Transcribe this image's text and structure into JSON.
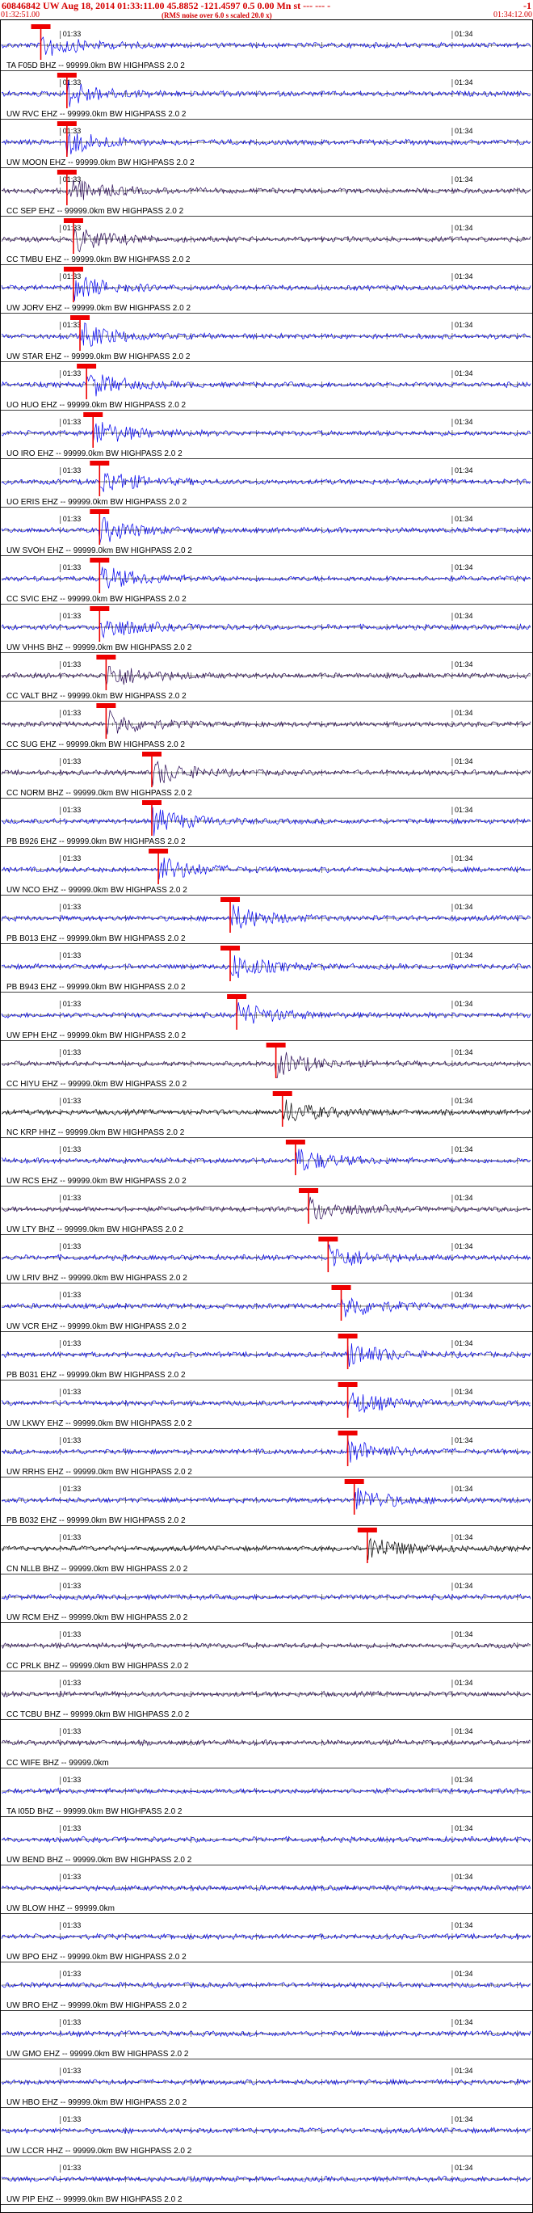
{
  "header": {
    "title": "60846842 UW Aug 18, 2014 01:33:11.00   45.8852 -121.4597  0.5 0.00 Mn st --- --- -",
    "title_right": "-1",
    "start_time": "01:32:51.00",
    "note": "(RMS noise over 6.0 s scaled 20.0 x)",
    "end_time": "01:34:12.00"
  },
  "chart_data": {
    "type": "line",
    "title": "60846842 UW Aug 18, 2014 01:33:11.00   45.8852 -121.4597  0.5 0.00 Mn st --- --- -",
    "xlim_seconds": [
      0,
      81
    ],
    "minute_tick_labels": [
      "01:33",
      "01:34"
    ],
    "minute_tick_seconds": [
      9,
      69
    ],
    "colors": {
      "blue": "#0000ee",
      "dark": "#2a0a55",
      "black": "#000000",
      "pick": "#ee0000"
    },
    "stations": [
      {
        "label": "TA F05D BHZ -- 99999.0km BW  HIGHPASS  2.0  2",
        "color": "blue",
        "pick": 6
      },
      {
        "label": "UW RVC EHZ -- 99999.0km BW  HIGHPASS  2.0  2",
        "color": "blue",
        "pick": 10
      },
      {
        "label": "UW MOON EHZ -- 99999.0km BW  HIGHPASS  2.0  2",
        "color": "blue",
        "pick": 10
      },
      {
        "label": "CC SEP EHZ -- 99999.0km BW  HIGHPASS  2.0  2",
        "color": "dark",
        "pick": 10
      },
      {
        "label": "CC TMBU EHZ -- 99999.0km BW  HIGHPASS  2.0  2",
        "color": "dark",
        "pick": 11
      },
      {
        "label": "UW JORV EHZ -- 99999.0km BW  HIGHPASS  2.0  2",
        "color": "blue",
        "pick": 11
      },
      {
        "label": "UW STAR EHZ -- 99999.0km BW  HIGHPASS  2.0  2",
        "color": "blue",
        "pick": 12
      },
      {
        "label": "UO HUO EHZ -- 99999.0km BW  HIGHPASS  2.0  2",
        "color": "blue",
        "pick": 13
      },
      {
        "label": "UO IRO EHZ -- 99999.0km BW  HIGHPASS  2.0  2",
        "color": "blue",
        "pick": 14
      },
      {
        "label": "UO ERIS EHZ -- 99999.0km BW  HIGHPASS  2.0  2",
        "color": "blue",
        "pick": 15
      },
      {
        "label": "UW SVOH EHZ -- 99999.0km BW  HIGHPASS  2.0  2",
        "color": "blue",
        "pick": 15
      },
      {
        "label": "CC SVIC EHZ -- 99999.0km BW  HIGHPASS  2.0  2",
        "color": "blue",
        "pick": 15
      },
      {
        "label": "UW VHHS BHZ -- 99999.0km BW  HIGHPASS  2.0  2",
        "color": "blue",
        "pick": 15
      },
      {
        "label": "CC VALT BHZ -- 99999.0km BW  HIGHPASS  2.0  2",
        "color": "dark",
        "pick": 16
      },
      {
        "label": "CC SUG EHZ -- 99999.0km BW  HIGHPASS  2.0  2",
        "color": "dark",
        "pick": 16
      },
      {
        "label": "CC NORM BHZ -- 99999.0km BW  HIGHPASS  2.0  2",
        "color": "dark",
        "pick": 23
      },
      {
        "label": "PB B926 EHZ -- 99999.0km BW  HIGHPASS  2.0  2",
        "color": "blue",
        "pick": 23
      },
      {
        "label": "UW NCO EHZ -- 99999.0km BW  HIGHPASS  2.0  2",
        "color": "blue",
        "pick": 24
      },
      {
        "label": "PB B013 EHZ -- 99999.0km BW  HIGHPASS  2.0  2",
        "color": "blue",
        "pick": 35
      },
      {
        "label": "PB B943 EHZ -- 99999.0km BW  HIGHPASS  2.0  2",
        "color": "blue",
        "pick": 35
      },
      {
        "label": "UW EPH EHZ -- 99999.0km BW  HIGHPASS  2.0  2",
        "color": "blue",
        "pick": 36
      },
      {
        "label": "CC HIYU EHZ -- 99999.0km BW  HIGHPASS  2.0  2",
        "color": "dark",
        "pick": 42
      },
      {
        "label": "NC KRP HHZ -- 99999.0km BW  HIGHPASS  2.0  2",
        "color": "black",
        "pick": 43
      },
      {
        "label": "UW RCS EHZ -- 99999.0km BW  HIGHPASS  2.0  2",
        "color": "blue",
        "pick": 45
      },
      {
        "label": "UW LTY BHZ -- 99999.0km BW  HIGHPASS  2.0  2",
        "color": "dark",
        "pick": 47
      },
      {
        "label": "UW LRIV BHZ -- 99999.0km BW  HIGHPASS  2.0  2",
        "color": "blue",
        "pick": 50
      },
      {
        "label": "UW VCR EHZ -- 99999.0km BW  HIGHPASS  2.0  2",
        "color": "blue",
        "pick": 52
      },
      {
        "label": "PB B031 EHZ -- 99999.0km BW  HIGHPASS  2.0  2",
        "color": "blue",
        "pick": 53
      },
      {
        "label": "UW LKWY EHZ -- 99999.0km BW  HIGHPASS  2.0  2",
        "color": "blue",
        "pick": 53
      },
      {
        "label": "UW RRHS EHZ -- 99999.0km BW  HIGHPASS  2.0  2",
        "color": "blue",
        "pick": 53
      },
      {
        "label": "PB B032 EHZ -- 99999.0km BW  HIGHPASS  2.0  2",
        "color": "blue",
        "pick": 54
      },
      {
        "label": "CN NLLB BHZ -- 99999.0km BW  HIGHPASS  2.0  2",
        "color": "black",
        "pick": 56
      },
      {
        "label": "UW RCM EHZ -- 99999.0km BW  HIGHPASS  2.0  2",
        "color": "blue",
        "pick": null
      },
      {
        "label": "CC PRLK BHZ -- 99999.0km BW  HIGHPASS  2.0  2",
        "color": "dark",
        "pick": null
      },
      {
        "label": "CC TCBU BHZ -- 99999.0km BW  HIGHPASS  2.0  2",
        "color": "dark",
        "pick": null
      },
      {
        "label": "CC WIFE BHZ -- 99999.0km",
        "color": "dark",
        "pick": null
      },
      {
        "label": "TA I05D BHZ -- 99999.0km BW  HIGHPASS  2.0  2",
        "color": "blue",
        "pick": null
      },
      {
        "label": "UW BEND BHZ -- 99999.0km BW  HIGHPASS  2.0  2",
        "color": "blue",
        "pick": null
      },
      {
        "label": "UW BLOW HHZ -- 99999.0km",
        "color": "blue",
        "pick": null
      },
      {
        "label": "UW BPO EHZ -- 99999.0km BW  HIGHPASS  2.0  2",
        "color": "blue",
        "pick": null
      },
      {
        "label": "UW BRO EHZ -- 99999.0km BW  HIGHPASS  2.0  2",
        "color": "blue",
        "pick": null
      },
      {
        "label": "UW GMO EHZ -- 99999.0km BW  HIGHPASS  2.0  2",
        "color": "blue",
        "pick": null
      },
      {
        "label": "UW HBO EHZ -- 99999.0km BW  HIGHPASS  2.0  2",
        "color": "blue",
        "pick": null
      },
      {
        "label": "UW LCCR HHZ -- 99999.0km BW  HIGHPASS  2.0  2",
        "color": "blue",
        "pick": null
      },
      {
        "label": "UW PIP EHZ -- 99999.0km BW  HIGHPASS  2.0  2",
        "color": "blue",
        "pick": null
      }
    ]
  }
}
